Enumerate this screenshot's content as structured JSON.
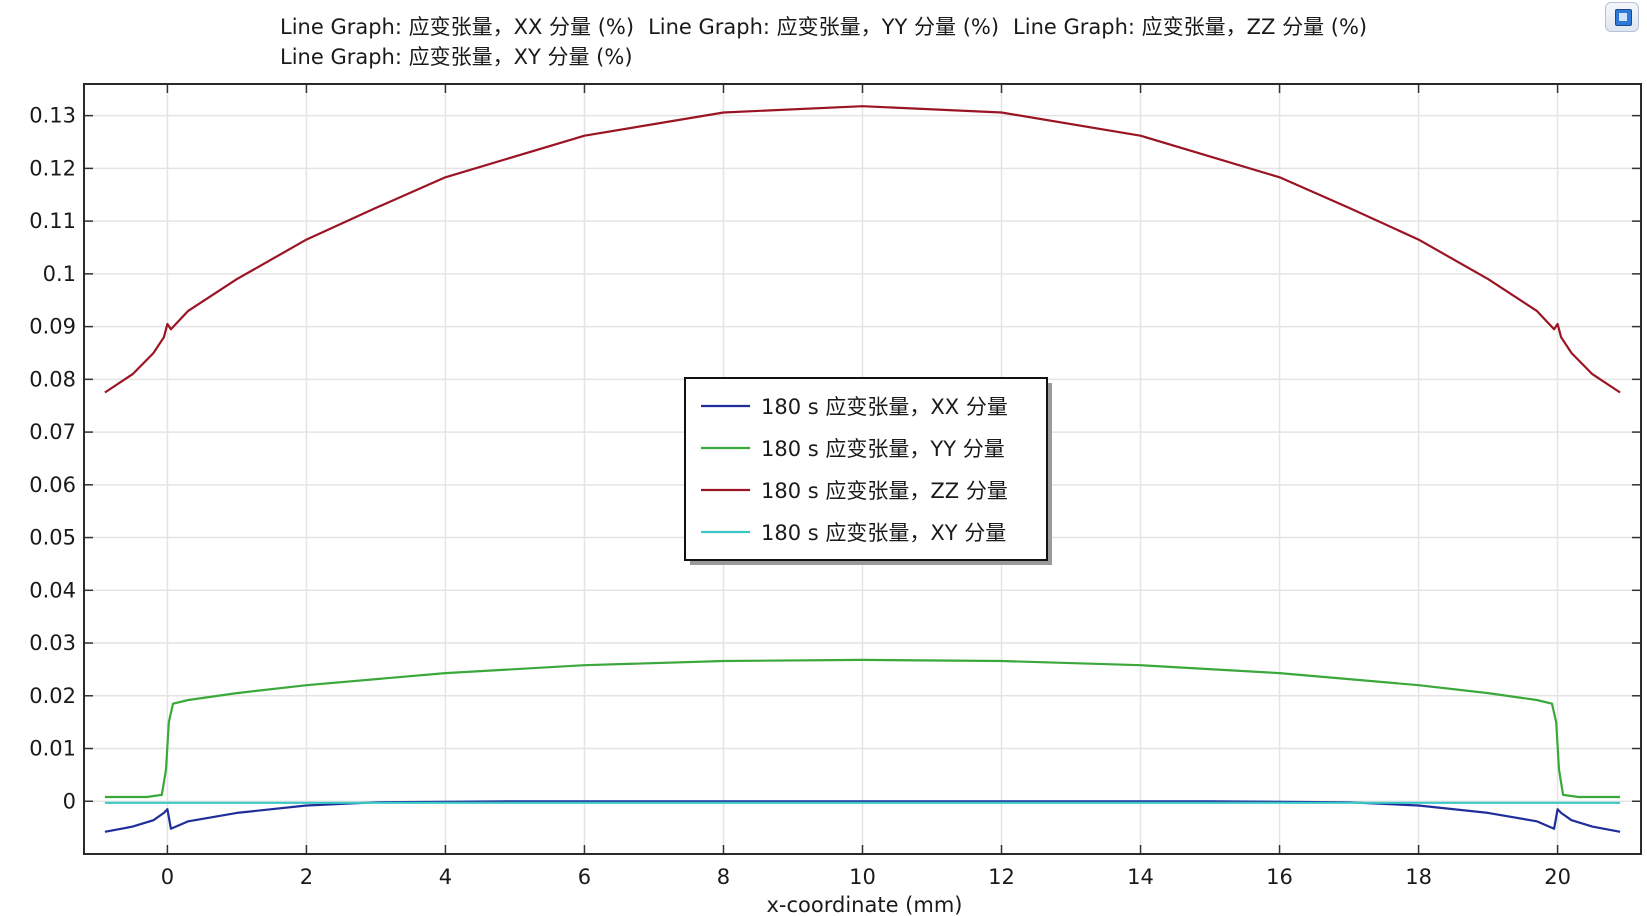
{
  "titles": [
    "Line Graph: 应变张量，XX 分量 (%)",
    "Line Graph: 应变张量，YY 分量 (%)",
    "Line Graph: 应变张量，ZZ 分量 (%)",
    "Line Graph: 应变张量，XY 分量 (%)"
  ],
  "chart_data": {
    "type": "line",
    "xlabel": "x-coordinate (mm)",
    "ylabel": "",
    "xlim": [
      -1.2,
      21.2
    ],
    "ylim": [
      -0.01,
      0.136
    ],
    "x_ticks": [
      0,
      2,
      4,
      6,
      8,
      10,
      12,
      14,
      16,
      18,
      20
    ],
    "x_tick_labels": [
      "0",
      "2",
      "4",
      "6",
      "8",
      "10",
      "12",
      "14",
      "16",
      "18",
      "20"
    ],
    "y_ticks": [
      0,
      0.01,
      0.02,
      0.03,
      0.04,
      0.05,
      0.06,
      0.07,
      0.08,
      0.09,
      0.1,
      0.11,
      0.12,
      0.13
    ],
    "y_tick_labels": [
      "0",
      "0.01",
      "0.02",
      "0.03",
      "0.04",
      "0.05",
      "0.06",
      "0.07",
      "0.08",
      "0.09",
      "0.1",
      "0.11",
      "0.12",
      "0.13"
    ],
    "grid": true,
    "legend_position": "center",
    "series": [
      {
        "name": "180 s 应变张量，XX 分量",
        "color": "#1f2e9a",
        "x": [
          -0.9,
          -0.5,
          -0.2,
          -0.05,
          0,
          0.05,
          0.3,
          1,
          2,
          3,
          5,
          10,
          15,
          17,
          18,
          19,
          19.7,
          19.95,
          20,
          20.05,
          20.2,
          20.5,
          20.9
        ],
        "y": [
          -0.0058,
          -0.0048,
          -0.0036,
          -0.0022,
          -0.0015,
          -0.0052,
          -0.0038,
          -0.0022,
          -0.0008,
          -0.0002,
          0,
          0,
          0,
          -0.0002,
          -0.0008,
          -0.0022,
          -0.0038,
          -0.0052,
          -0.0015,
          -0.0022,
          -0.0036,
          -0.0048,
          -0.0058
        ]
      },
      {
        "name": "180 s 应变张量，YY 分量",
        "color": "#3aa83a",
        "x": [
          -0.9,
          -0.3,
          -0.08,
          -0.02,
          0.02,
          0.08,
          0.3,
          1,
          2,
          4,
          6,
          8,
          10,
          12,
          14,
          16,
          18,
          19,
          19.7,
          19.92,
          19.98,
          20.02,
          20.08,
          20.3,
          20.9
        ],
        "y": [
          0.0008,
          0.0008,
          0.0012,
          0.006,
          0.015,
          0.0185,
          0.0192,
          0.0205,
          0.022,
          0.0243,
          0.0258,
          0.0266,
          0.0268,
          0.0266,
          0.0258,
          0.0243,
          0.022,
          0.0205,
          0.0192,
          0.0185,
          0.015,
          0.006,
          0.0012,
          0.0008,
          0.0008
        ]
      },
      {
        "name": "180 s 应变张量，ZZ 分量",
        "color": "#9b1424",
        "x": [
          -0.9,
          -0.5,
          -0.2,
          -0.05,
          0,
          0.05,
          0.3,
          1,
          2,
          3,
          4,
          6,
          8,
          10,
          12,
          14,
          16,
          17,
          18,
          19,
          19.7,
          19.95,
          20,
          20.05,
          20.2,
          20.5,
          20.9
        ],
        "y": [
          0.0775,
          0.081,
          0.085,
          0.088,
          0.0905,
          0.0895,
          0.093,
          0.099,
          0.1065,
          0.1125,
          0.1183,
          0.1262,
          0.1306,
          0.1318,
          0.1306,
          0.1262,
          0.1183,
          0.1125,
          0.1065,
          0.099,
          0.093,
          0.0895,
          0.0905,
          0.088,
          0.085,
          0.081,
          0.0775
        ]
      },
      {
        "name": "180 s 应变张量，XY 分量",
        "color": "#3cc9c5",
        "x": [
          -0.9,
          20.9
        ],
        "y": [
          -0.0003,
          -0.0003
        ]
      }
    ]
  }
}
